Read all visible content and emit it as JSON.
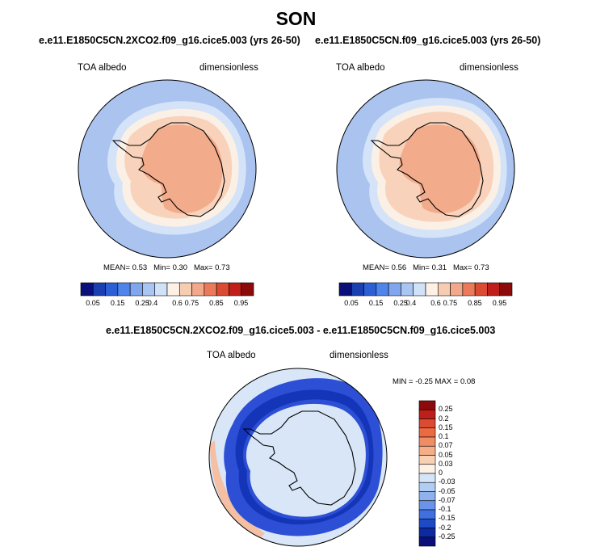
{
  "season": "SON",
  "panels": [
    {
      "case": "e.e11.E1850C5CN.2XCO2.f09_g16.cice5.003 (yrs 26-50)",
      "variable": "TOA albedo",
      "units": "dimensionless",
      "stats": {
        "mean_label": "MEAN=",
        "mean": "0.53",
        "min_label": "Min=",
        "min": "0.30",
        "max_label": "Max=",
        "max": "0.73"
      }
    },
    {
      "case": "e.e11.E1850C5CN.f09_g16.cice5.003 (yrs 26-50)",
      "variable": "TOA albedo",
      "units": "dimensionless",
      "stats": {
        "mean_label": "MEAN=",
        "mean": "0.56",
        "min_label": "Min=",
        "min": "0.31",
        "max_label": "Max=",
        "max": "0.73"
      }
    }
  ],
  "diff_panel": {
    "case": "e.e11.E1850C5CN.2XCO2.f09_g16.cice5.003 - e.e11.E1850C5CN.f09_g16.cice5.003",
    "variable": "TOA albedo",
    "units": "dimensionless",
    "stats": {
      "min_label": "MIN =",
      "min": "-0.25",
      "max_label": "MAX =",
      "max": "0.08"
    }
  },
  "colorbar_abs": {
    "colors": [
      "#0a0f7a",
      "#1b3fb0",
      "#2c5fd6",
      "#4f84ea",
      "#7fa6ee",
      "#a9c5f2",
      "#d0e2f7",
      "#fdf1e6",
      "#f7cdb2",
      "#f2a88a",
      "#ea7a5a",
      "#db4b32",
      "#c01e1a",
      "#8c0a0a"
    ],
    "labels": [
      "0.05",
      "0.15",
      "0.25",
      "0.4",
      "0.6",
      "0.75",
      "0.85",
      "0.95"
    ]
  },
  "colorbar_diff": {
    "colors": [
      "#8c0a0a",
      "#c01e1a",
      "#db4b32",
      "#ea6a42",
      "#f08d64",
      "#f4ae88",
      "#f8d0b4",
      "#fdf1e6",
      "#d4e5f8",
      "#b2cdf4",
      "#8fb2ef",
      "#6a94ea",
      "#3f6fe0",
      "#1f4ac6",
      "#0e2aa0",
      "#0a0f7a"
    ],
    "labels": [
      "0.25",
      "0.2",
      "0.15",
      "0.1",
      "0.07",
      "0.05",
      "0.03",
      "0",
      "-0.03",
      "-0.05",
      "-0.07",
      "-0.1",
      "-0.15",
      "-0.2",
      "-0.25"
    ]
  },
  "map_colors": {
    "ocean_low": "#aac3ef",
    "mid_low": "#d4e3f8",
    "near_white": "#fbf0e6",
    "mid_high": "#f8d2ba",
    "high": "#f2ab8b",
    "diff_bg": "#d8e6f7",
    "diff_ring_outer": "#2c4fd6",
    "diff_ring_inner": "#1535b8",
    "diff_pos": "#f4bfa3",
    "coast": "#000000"
  }
}
